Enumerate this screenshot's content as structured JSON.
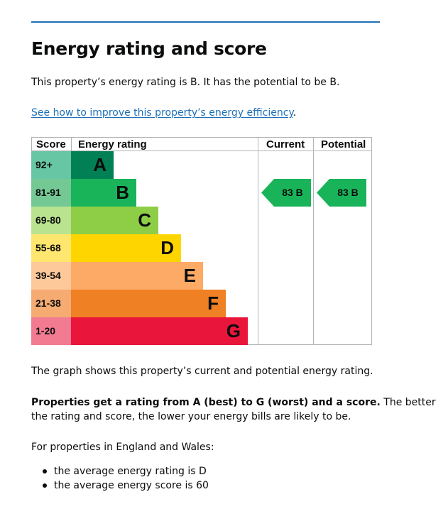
{
  "heading": "Energy rating and score",
  "intro": "This property’s energy rating is B. It has the potential to be B.",
  "improve_link": "See how to improve this property’s energy efficiency",
  "improve_link_suffix": ".",
  "chart": {
    "headers": {
      "score": "Score",
      "energy_rating": "Energy rating",
      "current": "Current",
      "potential": "Potential"
    },
    "bands": [
      {
        "score": "92+",
        "letter": "A",
        "color": "#008054",
        "score_bg": "#67c6a4"
      },
      {
        "score": "81-91",
        "letter": "B",
        "color": "#19b459",
        "score_bg": "#74c893"
      },
      {
        "score": "69-80",
        "letter": "C",
        "color": "#8dce46",
        "score_bg": "#b9e38f"
      },
      {
        "score": "55-68",
        "letter": "D",
        "color": "#ffd500",
        "score_bg": "#ffe66e"
      },
      {
        "score": "39-54",
        "letter": "E",
        "color": "#fcaa65",
        "score_bg": "#fdc89a"
      },
      {
        "score": "21-38",
        "letter": "F",
        "color": "#ef8023",
        "score_bg": "#f5ab72"
      },
      {
        "score": "1-20",
        "letter": "G",
        "color": "#e9153b",
        "score_bg": "#f27b91"
      }
    ],
    "current": {
      "label": "83 B",
      "score": 83,
      "band": "B",
      "color": "#19b459"
    },
    "potential": {
      "label": "83 B",
      "score": 83,
      "band": "B",
      "color": "#19b459"
    }
  },
  "summary": "The graph shows this property’s current and potential energy rating.",
  "rating_explainer_bold": "Properties get a rating from A (best) to G (worst) and a score.",
  "rating_explainer_rest_1": " The better",
  "rating_explainer_rest_2": "the rating and score, the lower your energy bills are likely to be.",
  "region_intro": "For properties in England and Wales:",
  "averages": [
    "the average energy rating is D",
    "the average energy score is 60"
  ]
}
